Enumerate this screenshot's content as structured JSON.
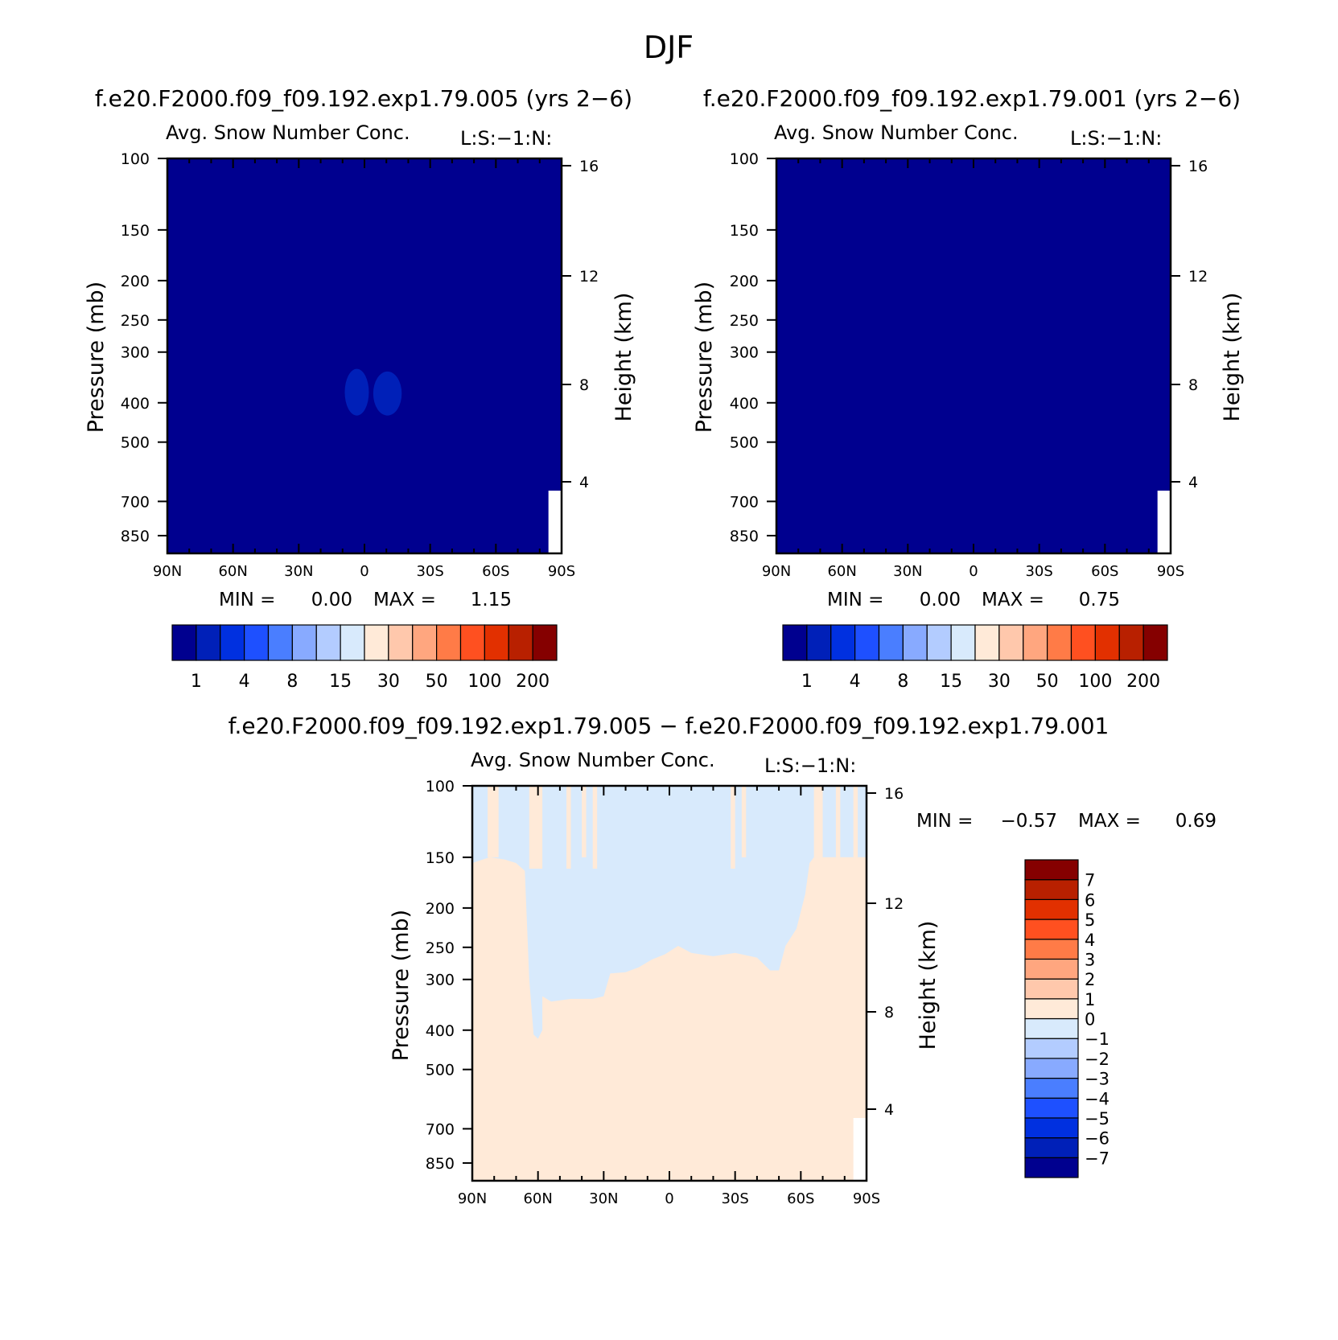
{
  "figure_title": "DJF",
  "chart_data": [
    {
      "type": "heatmap",
      "panel_title": "f.e20.F2000.f09_f09.192.exp1.79.005 (yrs 2−6)",
      "variable_title": "Avg. Snow Number Conc.",
      "variable_units": "L:S:−1:N:",
      "xlabel": "",
      "ylabel": "Pressure (mb)",
      "ylabel_right": "Height (km)",
      "x_ticks": [
        {
          "value": 90,
          "label": "90N"
        },
        {
          "value": 60,
          "label": "60N"
        },
        {
          "value": 30,
          "label": "30N"
        },
        {
          "value": 0,
          "label": "0"
        },
        {
          "value": -30,
          "label": "30S"
        },
        {
          "value": -60,
          "label": "60S"
        },
        {
          "value": -90,
          "label": "90S"
        }
      ],
      "y_ticks": [
        100,
        150,
        200,
        250,
        300,
        400,
        500,
        700,
        850
      ],
      "height_ticks": [
        4,
        8,
        12,
        16
      ],
      "xlim": [
        90,
        -90
      ],
      "ylim_mb": [
        100,
        1000
      ],
      "min_label": "MIN =",
      "min_value": "0.00",
      "max_label": "MAX =",
      "max_value": "1.15",
      "background_color": "#00008f",
      "features": [
        {
          "lat_min": -2,
          "lat_max": 9,
          "p_top": 330,
          "p_bot": 430,
          "color": "#0020b8"
        },
        {
          "lat_min": -17,
          "lat_max": -4,
          "p_top": 335,
          "p_bot": 430,
          "color": "#0020b8"
        }
      ],
      "colorbar": {
        "orientation": "horizontal",
        "colors": [
          "#00008f",
          "#0020b8",
          "#0030e0",
          "#1e50ff",
          "#4a7eff",
          "#88aaff",
          "#b3ccff",
          "#d8eafc",
          "#ffead8",
          "#ffc8ac",
          "#ffa67f",
          "#ff7b47",
          "#ff5020",
          "#e23000",
          "#b82000",
          "#850000"
        ],
        "labels": [
          "1",
          "4",
          "8",
          "15",
          "30",
          "50",
          "100",
          "200"
        ]
      }
    },
    {
      "type": "heatmap",
      "panel_title": "f.e20.F2000.f09_f09.192.exp1.79.001 (yrs 2−6)",
      "variable_title": "Avg. Snow Number Conc.",
      "variable_units": "L:S:−1:N:",
      "xlabel": "",
      "ylabel": "Pressure (mb)",
      "ylabel_right": "Height (km)",
      "x_ticks": [
        {
          "value": 90,
          "label": "90N"
        },
        {
          "value": 60,
          "label": "60N"
        },
        {
          "value": 30,
          "label": "30N"
        },
        {
          "value": 0,
          "label": "0"
        },
        {
          "value": -30,
          "label": "30S"
        },
        {
          "value": -60,
          "label": "60S"
        },
        {
          "value": -90,
          "label": "90S"
        }
      ],
      "y_ticks": [
        100,
        150,
        200,
        250,
        300,
        400,
        500,
        700,
        850
      ],
      "height_ticks": [
        4,
        8,
        12,
        16
      ],
      "xlim": [
        90,
        -90
      ],
      "ylim_mb": [
        100,
        1000
      ],
      "min_label": "MIN =",
      "min_value": "0.00",
      "max_label": "MAX =",
      "max_value": "0.75",
      "background_color": "#00008f",
      "features": [],
      "colorbar": {
        "orientation": "horizontal",
        "colors": [
          "#00008f",
          "#0020b8",
          "#0030e0",
          "#1e50ff",
          "#4a7eff",
          "#88aaff",
          "#b3ccff",
          "#d8eafc",
          "#ffead8",
          "#ffc8ac",
          "#ffa67f",
          "#ff7b47",
          "#ff5020",
          "#e23000",
          "#b82000",
          "#850000"
        ],
        "labels": [
          "1",
          "4",
          "8",
          "15",
          "30",
          "50",
          "100",
          "200"
        ]
      }
    },
    {
      "type": "heatmap",
      "panel_title": "f.e20.F2000.f09_f09.192.exp1.79.005 − f.e20.F2000.f09_f09.192.exp1.79.001",
      "variable_title": "Avg. Snow Number Conc.",
      "variable_units": "L:S:−1:N:",
      "xlabel": "",
      "ylabel": "Pressure (mb)",
      "ylabel_right": "Height (km)",
      "x_ticks": [
        {
          "value": 90,
          "label": "90N"
        },
        {
          "value": 60,
          "label": "60N"
        },
        {
          "value": 30,
          "label": "30N"
        },
        {
          "value": 0,
          "label": "0"
        },
        {
          "value": -30,
          "label": "30S"
        },
        {
          "value": -60,
          "label": "60S"
        },
        {
          "value": -90,
          "label": "90S"
        }
      ],
      "y_ticks": [
        100,
        150,
        200,
        250,
        300,
        400,
        500,
        700,
        850
      ],
      "height_ticks": [
        4,
        8,
        12,
        16
      ],
      "xlim": [
        90,
        -90
      ],
      "ylim_mb": [
        100,
        1000
      ],
      "min_label": "MIN =",
      "min_value": "−0.57",
      "max_label": "MAX =",
      "max_value": "0.69",
      "background_color": "#ffead8",
      "negative_color": "#d8eafc",
      "negative_region_boundary": [
        {
          "lat": 90,
          "p": 155
        },
        {
          "lat": 82,
          "p": 150
        },
        {
          "lat": 75,
          "p": 152
        },
        {
          "lat": 70,
          "p": 155
        },
        {
          "lat": 66,
          "p": 162
        },
        {
          "lat": 64,
          "p": 300
        },
        {
          "lat": 62,
          "p": 410
        },
        {
          "lat": 60,
          "p": 420
        },
        {
          "lat": 58,
          "p": 400
        },
        {
          "lat": 58,
          "p": 330
        },
        {
          "lat": 54,
          "p": 340
        },
        {
          "lat": 45,
          "p": 335
        },
        {
          "lat": 35,
          "p": 335
        },
        {
          "lat": 30,
          "p": 330
        },
        {
          "lat": 27,
          "p": 290
        },
        {
          "lat": 20,
          "p": 288
        },
        {
          "lat": 14,
          "p": 280
        },
        {
          "lat": 8,
          "p": 268
        },
        {
          "lat": 2,
          "p": 260
        },
        {
          "lat": -4,
          "p": 248
        },
        {
          "lat": -10,
          "p": 258
        },
        {
          "lat": -20,
          "p": 263
        },
        {
          "lat": -30,
          "p": 258
        },
        {
          "lat": -40,
          "p": 265
        },
        {
          "lat": -46,
          "p": 285
        },
        {
          "lat": -50,
          "p": 285
        },
        {
          "lat": -53,
          "p": 248
        },
        {
          "lat": -58,
          "p": 225
        },
        {
          "lat": -62,
          "p": 185
        },
        {
          "lat": -64,
          "p": 155
        },
        {
          "lat": -66,
          "p": 150
        },
        {
          "lat": -90,
          "p": 150
        }
      ],
      "positive_streaks_upper": [
        {
          "lat_min": 78,
          "lat_max": 83,
          "p_top": 100,
          "p_bot": 150
        },
        {
          "lat_min": 58,
          "lat_max": 64,
          "p_top": 100,
          "p_bot": 160
        },
        {
          "lat_min": 45,
          "lat_max": 47,
          "p_top": 100,
          "p_bot": 160
        },
        {
          "lat_min": 38,
          "lat_max": 40,
          "p_top": 100,
          "p_bot": 150
        },
        {
          "lat_min": 33,
          "lat_max": 35,
          "p_top": 100,
          "p_bot": 160
        },
        {
          "lat_min": -30,
          "lat_max": -28,
          "p_top": 100,
          "p_bot": 160
        },
        {
          "lat_min": -35,
          "lat_max": -33,
          "p_top": 100,
          "p_bot": 150
        },
        {
          "lat_min": -70,
          "lat_max": -66,
          "p_top": 100,
          "p_bot": 150
        },
        {
          "lat_min": -78,
          "lat_max": -76,
          "p_top": 100,
          "p_bot": 150
        },
        {
          "lat_min": -86,
          "lat_max": -84,
          "p_top": 100,
          "p_bot": 150
        }
      ],
      "colorbar": {
        "orientation": "vertical",
        "colors": [
          "#00008f",
          "#0020b8",
          "#0030e0",
          "#1e50ff",
          "#4a7eff",
          "#88aaff",
          "#b3ccff",
          "#d8eafc",
          "#ffead8",
          "#ffc8ac",
          "#ffa67f",
          "#ff7b47",
          "#ff5020",
          "#e23000",
          "#b82000",
          "#850000"
        ],
        "labels": [
          "−7",
          "−6",
          "−5",
          "−4",
          "−3",
          "−2",
          "−1",
          "0",
          "1",
          "2",
          "3",
          "4",
          "5",
          "6",
          "7"
        ]
      }
    }
  ]
}
